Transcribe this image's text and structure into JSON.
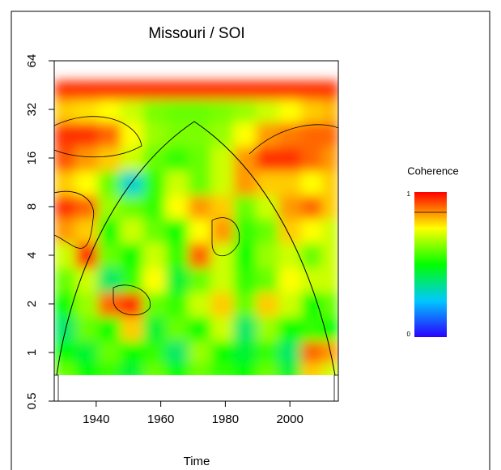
{
  "chart_data": {
    "type": "heatmap",
    "title": "Missouri / SOI",
    "xlabel": "Time",
    "x": [
      1930,
      1937,
      1944,
      1951,
      1958,
      1965,
      1972,
      1979,
      1986,
      1993,
      2000,
      2007,
      2013
    ],
    "y": [
      0.75,
      1,
      1.4,
      2,
      2.8,
      4,
      5.7,
      8,
      11,
      16,
      22,
      32,
      42
    ],
    "values": [
      [
        0.6,
        0.5,
        0.55,
        0.45,
        0.6,
        0.5,
        0.6,
        0.55,
        0.5,
        0.6,
        0.45,
        0.8,
        0.7
      ],
      [
        0.5,
        0.45,
        0.6,
        0.5,
        0.55,
        0.4,
        0.65,
        0.5,
        0.45,
        0.55,
        0.4,
        0.9,
        0.85
      ],
      [
        0.4,
        0.6,
        0.5,
        0.8,
        0.45,
        0.6,
        0.5,
        0.7,
        0.4,
        0.65,
        0.5,
        0.55,
        0.5
      ],
      [
        0.5,
        0.65,
        0.9,
        0.95,
        0.6,
        0.55,
        0.7,
        0.8,
        0.6,
        0.8,
        0.7,
        0.5,
        0.6
      ],
      [
        0.6,
        0.7,
        0.4,
        0.55,
        0.75,
        0.45,
        0.6,
        0.7,
        0.55,
        0.6,
        0.75,
        0.7,
        0.7
      ],
      [
        0.7,
        0.95,
        0.6,
        0.5,
        0.7,
        0.55,
        0.9,
        0.7,
        0.5,
        0.65,
        0.7,
        0.6,
        0.7
      ],
      [
        0.85,
        0.8,
        0.5,
        0.7,
        0.6,
        0.5,
        0.75,
        0.85,
        0.55,
        0.6,
        0.8,
        0.75,
        0.7
      ],
      [
        0.95,
        0.9,
        0.65,
        0.6,
        0.55,
        0.75,
        0.85,
        0.8,
        0.6,
        0.7,
        0.85,
        0.9,
        0.8
      ],
      [
        0.8,
        0.75,
        0.6,
        0.3,
        0.55,
        0.7,
        0.6,
        0.7,
        0.85,
        0.8,
        0.8,
        0.75,
        0.8
      ],
      [
        0.92,
        0.85,
        0.8,
        0.7,
        0.6,
        0.55,
        0.6,
        0.7,
        0.85,
        0.95,
        0.95,
        0.9,
        0.85
      ],
      [
        0.95,
        0.95,
        0.9,
        0.75,
        0.65,
        0.62,
        0.62,
        0.65,
        0.75,
        0.85,
        0.88,
        0.9,
        0.9
      ],
      [
        0.8,
        0.78,
        0.75,
        0.7,
        0.62,
        0.6,
        0.6,
        0.62,
        0.65,
        0.7,
        0.75,
        0.8,
        0.82
      ],
      [
        0.95,
        0.95,
        0.95,
        0.95,
        0.95,
        0.95,
        0.95,
        0.95,
        0.95,
        0.95,
        0.95,
        0.95,
        0.95
      ]
    ],
    "xlim": [
      1927,
      2015
    ],
    "ylim": [
      0.5,
      64
    ],
    "ylog": true,
    "xticks": [
      1940,
      1960,
      1980,
      2000
    ],
    "yticks": [
      0.5,
      1,
      2,
      4,
      8,
      16,
      32,
      64
    ],
    "colormap": [
      "#2a00ff",
      "#00c8ff",
      "#00ff00",
      "#ffff00",
      "#ff0000"
    ],
    "colorbar": {
      "title": "Coherence",
      "ticks": [
        0,
        1
      ]
    }
  }
}
